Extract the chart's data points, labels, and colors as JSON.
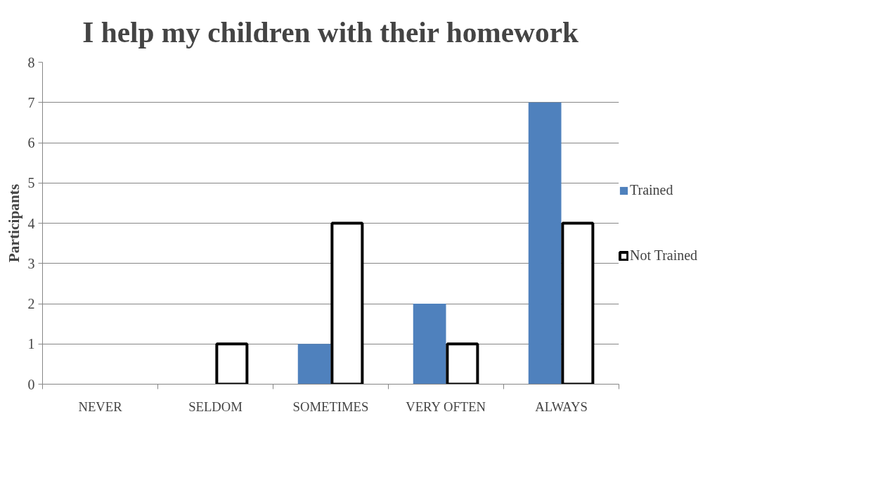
{
  "chart_data": {
    "type": "bar",
    "title": "I help my children with their homework",
    "ylabel": "Participants",
    "categories": [
      "NEVER",
      "SELDOM",
      "SOMETIMES",
      "VERY OFTEN",
      "ALWAYS"
    ],
    "series": [
      {
        "name": "Trained",
        "color": "#4f81bd",
        "values": [
          0,
          0,
          1,
          2,
          7
        ]
      },
      {
        "name": "Not Trained",
        "color": "#ffffff",
        "values": [
          0,
          1,
          4,
          1,
          4
        ]
      }
    ],
    "ylim": [
      0,
      8
    ],
    "yticks": [
      0,
      1,
      2,
      3,
      4,
      5,
      6,
      7,
      8
    ],
    "grid": "y",
    "legend": "right"
  }
}
